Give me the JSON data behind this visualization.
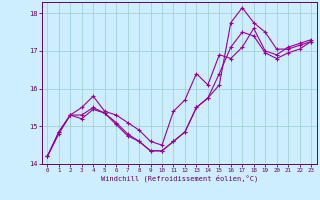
{
  "xlabel": "Windchill (Refroidissement éolien,°C)",
  "bg_color": "#cceeff",
  "line_color": "#990099",
  "grid_color": "#99cccc",
  "axis_color": "#660066",
  "tick_color": "#660066",
  "xlim": [
    -0.5,
    23.5
  ],
  "ylim": [
    14,
    18.3
  ],
  "yticks": [
    14,
    15,
    16,
    17,
    18
  ],
  "xticks": [
    0,
    1,
    2,
    3,
    4,
    5,
    6,
    7,
    8,
    9,
    10,
    11,
    12,
    13,
    14,
    15,
    16,
    17,
    18,
    19,
    20,
    21,
    22,
    23
  ],
  "series": [
    [
      14.2,
      14.8,
      15.3,
      15.5,
      15.8,
      15.4,
      15.3,
      15.1,
      14.9,
      14.6,
      14.5,
      15.4,
      15.7,
      16.4,
      16.1,
      16.9,
      16.8,
      17.1,
      17.6,
      17.0,
      16.9,
      17.1,
      17.2,
      17.3
    ],
    [
      14.2,
      14.85,
      15.3,
      15.3,
      15.5,
      15.35,
      15.1,
      14.8,
      14.6,
      14.35,
      14.35,
      14.6,
      14.85,
      15.5,
      15.75,
      16.1,
      17.75,
      18.15,
      17.75,
      17.5,
      17.05,
      17.05,
      17.15,
      17.25
    ],
    [
      14.2,
      14.85,
      15.3,
      15.2,
      15.45,
      15.35,
      15.05,
      14.75,
      14.6,
      14.35,
      14.35,
      14.6,
      14.85,
      15.5,
      15.75,
      16.4,
      17.1,
      17.5,
      17.4,
      16.95,
      16.8,
      16.95,
      17.05,
      17.25
    ]
  ]
}
